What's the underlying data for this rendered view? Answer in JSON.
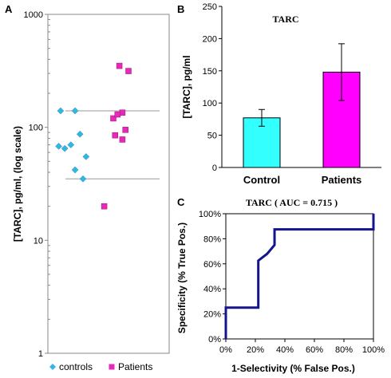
{
  "chart_data": [
    {
      "panel_label": "A",
      "type": "scatter",
      "ylabel": "[TARC], pg/ml, (log scale)",
      "yscale": "log",
      "ylim": [
        1,
        1000
      ],
      "yticks": [
        "1",
        "10",
        "100",
        "1000"
      ],
      "reference_lines": [
        140,
        35
      ],
      "series": [
        {
          "name": "controls",
          "marker": "diamond",
          "color": "#33B5E5",
          "points": [
            [
              -0.12,
              140
            ],
            [
              0.12,
              140
            ],
            [
              0.2,
              87
            ],
            [
              -0.15,
              68
            ],
            [
              -0.05,
              65
            ],
            [
              0.05,
              70
            ],
            [
              0.3,
              55
            ],
            [
              0.12,
              42
            ],
            [
              0.25,
              35
            ]
          ]
        },
        {
          "name": "Patients",
          "marker": "square",
          "color": "#E62AB8",
          "points": [
            [
              0.85,
              350
            ],
            [
              1.0,
              315
            ],
            [
              0.9,
              135
            ],
            [
              0.75,
              120
            ],
            [
              0.82,
              130
            ],
            [
              0.95,
              95
            ],
            [
              0.78,
              85
            ],
            [
              0.9,
              78
            ],
            [
              0.6,
              20
            ]
          ]
        }
      ],
      "legend_position": "bottom"
    },
    {
      "panel_label": "B",
      "type": "bar",
      "title": "TARC",
      "ylabel": "[TARC], pg/ml",
      "categories": [
        "Control",
        "Patients"
      ],
      "values": [
        77,
        148
      ],
      "errors": [
        13,
        44
      ],
      "colors": [
        "#33FFFF",
        "#FF00FF"
      ],
      "ylim": [
        0,
        250
      ],
      "yticks": [
        "0",
        "50",
        "100",
        "150",
        "200",
        "250"
      ]
    },
    {
      "panel_label": "C",
      "type": "line",
      "title": "TARC  ( AUC = 0.715 )",
      "xlabel": "1-Selectivity (% False Pos.)",
      "ylabel": "Specificity (% True Pos.)",
      "xlim": [
        0,
        100
      ],
      "ylim": [
        0,
        100
      ],
      "xticks": [
        "0%",
        "20%",
        "40%",
        "60%",
        "80%",
        "100%"
      ],
      "yticks": [
        "0%",
        "20%",
        "40%",
        "60%",
        "80%",
        "100%"
      ],
      "color": "#14148C",
      "x": [
        0,
        0,
        22,
        22,
        28,
        33,
        33,
        100,
        100
      ],
      "y": [
        0,
        25,
        25,
        62.5,
        68,
        75,
        87.5,
        87.5,
        100
      ]
    }
  ]
}
